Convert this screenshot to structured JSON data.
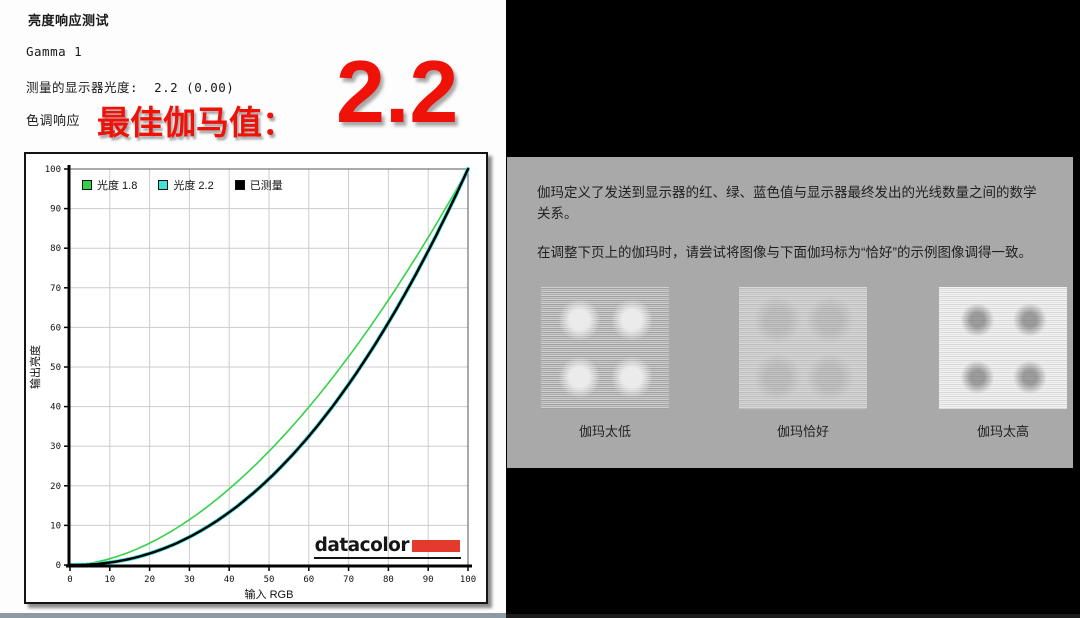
{
  "colors": {
    "accent_red": "#ee1209",
    "logo_red": "#e23b2e",
    "panel_gray": "#a9a9a9",
    "grid_gray": "#cccccc"
  },
  "report": {
    "title": "亮度响应测试",
    "gamma_line": "Gamma 1",
    "luminance_line": "测量的显示器光度:  2.2 (0.00)",
    "tone_response_line": "色调响应",
    "best_gamma_label": "最佳伽马值：",
    "best_gamma_value": "2.2",
    "logo_text": "datacolor"
  },
  "chart_data": {
    "type": "line",
    "title": "",
    "xlabel": "输入 RGB",
    "ylabel": "输出亮度",
    "xlim": [
      0,
      100
    ],
    "ylim": [
      0,
      100
    ],
    "xticks": [
      0,
      10,
      20,
      30,
      40,
      50,
      60,
      70,
      80,
      90,
      100
    ],
    "yticks": [
      0,
      10,
      20,
      30,
      40,
      50,
      60,
      70,
      80,
      90,
      100
    ],
    "grid": true,
    "legend_position": "top-left-inside",
    "x": [
      0,
      10,
      20,
      30,
      40,
      50,
      60,
      70,
      80,
      90,
      100
    ],
    "series": [
      {
        "name": "光度 1.8",
        "color": "#35d14a",
        "gamma": 1.8,
        "width": 1.6,
        "values": [
          0,
          1.6,
          5.5,
          11.5,
          19.2,
          28.7,
          39.9,
          52.6,
          66.9,
          82.7,
          100
        ]
      },
      {
        "name": "光度 2.2",
        "color": "#45e0d8",
        "gamma": 2.2,
        "width": 4,
        "values": [
          0,
          0.6,
          2.9,
          7.1,
          13.3,
          21.8,
          32.5,
          45.6,
          61.2,
          79.3,
          100
        ]
      },
      {
        "name": "已测量",
        "color": "#000000",
        "gamma": 2.2,
        "width": 2.4,
        "values": [
          0,
          0.6,
          2.9,
          7.1,
          13.3,
          21.8,
          32.5,
          45.6,
          61.2,
          79.3,
          100
        ]
      }
    ]
  },
  "info_panel": {
    "paragraph1": "伽玛定义了发送到显示器的红、绿、蓝色值与显示器最终发出的光线数量之间的数学关系。",
    "paragraph2": "在调整下页上的伽玛时，请尝试将图像与下面伽玛标为“恰好”的示例图像调得一致。",
    "examples": [
      {
        "label": "伽玛太低"
      },
      {
        "label": "伽玛恰好"
      },
      {
        "label": "伽玛太高"
      }
    ]
  }
}
